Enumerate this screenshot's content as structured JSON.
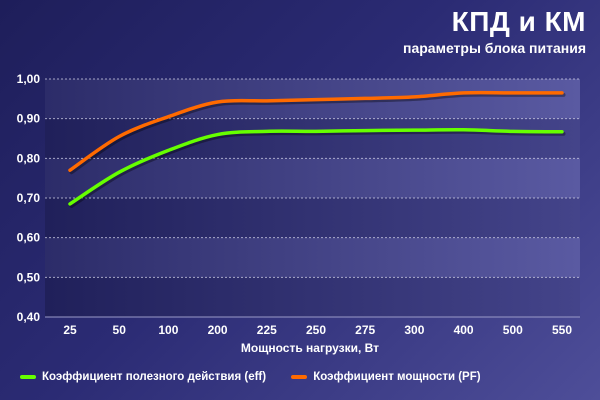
{
  "header": {
    "title": "КПД и КМ",
    "subtitle": "параметры блока питания"
  },
  "colors": {
    "background": "#2b2b74",
    "plot_band_dark": "#22225e",
    "plot_band_light": "#33336f",
    "eff": "#66ff00",
    "pf": "#ff6a00",
    "grid": "#c8c8e0"
  },
  "chart_data": {
    "type": "line",
    "title": "КПД и КМ",
    "subtitle": "параметры блока питания",
    "xlabel": "Мощность нагрузки, Вт",
    "ylabel": "",
    "categories": [
      "25",
      "50",
      "100",
      "200",
      "225",
      "250",
      "275",
      "300",
      "400",
      "500",
      "550"
    ],
    "y_ticks": [
      "0,40",
      "0,50",
      "0,60",
      "0,70",
      "0,80",
      "0,90",
      "1,00"
    ],
    "ylim": [
      0.4,
      1.0
    ],
    "grid": true,
    "legend_position": "bottom",
    "series": [
      {
        "name": "Коэффициент полезного действия (eff)",
        "color": "#66ff00",
        "values": [
          0.685,
          0.765,
          0.82,
          0.86,
          0.868,
          0.868,
          0.87,
          0.871,
          0.872,
          0.868,
          0.867
        ]
      },
      {
        "name": "Коэффициент мощности (PF)",
        "color": "#ff6a00",
        "values": [
          0.77,
          0.855,
          0.905,
          0.942,
          0.945,
          0.948,
          0.951,
          0.955,
          0.965,
          0.965,
          0.965
        ]
      }
    ]
  }
}
